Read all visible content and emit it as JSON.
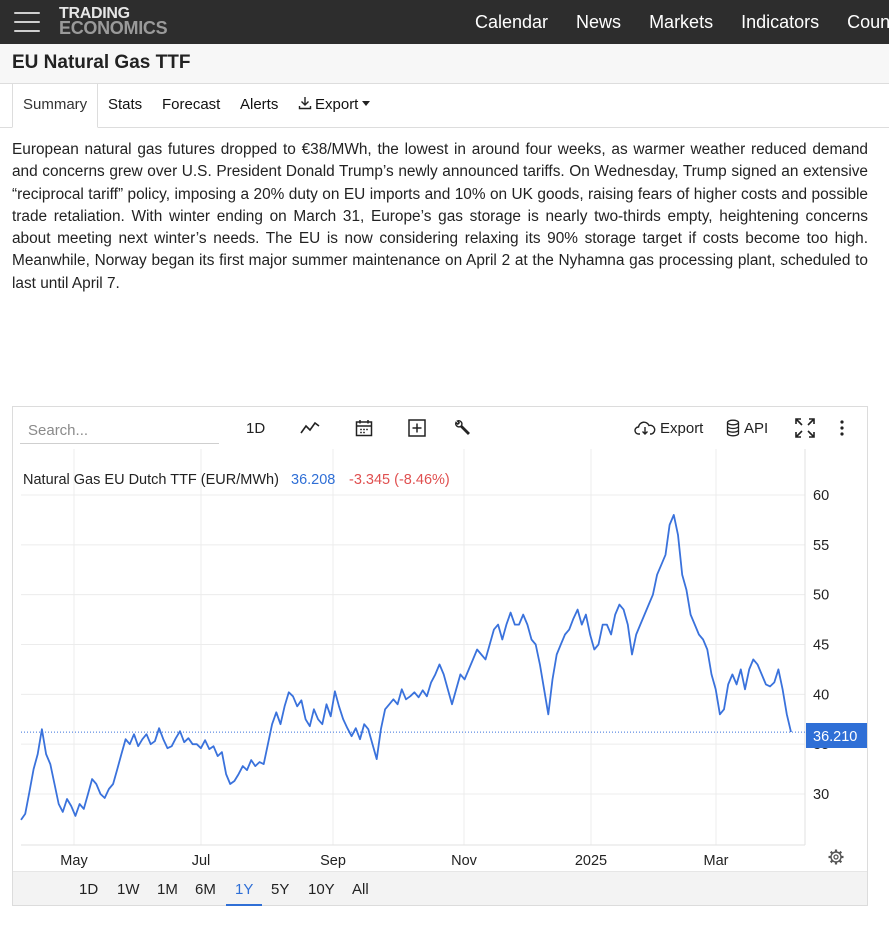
{
  "brand": {
    "line1": "TRADING",
    "line2": "ECONOMICS"
  },
  "nav": [
    "Calendar",
    "News",
    "Markets",
    "Indicators",
    "Countries"
  ],
  "page_title": "EU Natural Gas TTF",
  "tabs": {
    "summary": "Summary",
    "stats": "Stats",
    "forecast": "Forecast",
    "alerts": "Alerts",
    "export": "Export"
  },
  "description": "European natural gas futures dropped to €38/MWh, the lowest in around four weeks, as warmer weather reduced demand and concerns grew over U.S. President Donald Trump’s newly announced tariffs. On Wednesday, Trump signed an extensive “reciprocal tariff” policy, imposing a 20% duty on EU imports and 10% on UK goods, raising fears of higher costs and possible trade retaliation. With winter ending on March 31, Europe’s gas storage is nearly two-thirds empty, heightening concerns about meeting next winter’s needs. The EU is now considering relaxing its 90% storage target if costs become too high. Meanwhile, Norway began its first major summer maintenance on April 2 at the Nyhamna gas processing plant, scheduled to last until April 7.",
  "toolbar": {
    "search_placeholder": "Search...",
    "interval": "1D",
    "export": "Export",
    "api": "API"
  },
  "legend": {
    "name": "Natural Gas EU Dutch TTF (EUR/MWh)",
    "last": "36.208",
    "change": "-3.345 (-8.46%)"
  },
  "last_price_label": "36.210",
  "ranges": [
    "1D",
    "1W",
    "1M",
    "6M",
    "1Y",
    "5Y",
    "10Y",
    "All"
  ],
  "active_range": "1Y",
  "colors": {
    "line": "#3a72dc",
    "negative": "#e05050",
    "positive_text": "#2f6fd6",
    "navbar": "#2d2d2d"
  },
  "chart_data": {
    "type": "line",
    "title": "",
    "series": [
      {
        "name": "Natural Gas EU Dutch TTF (EUR/MWh)",
        "values": [
          27.4,
          28.0,
          30.2,
          32.5,
          34.0,
          36.5,
          34.0,
          33.0,
          31.0,
          29.0,
          28.2,
          29.5,
          28.8,
          27.8,
          29.0,
          28.5,
          30.0,
          31.5,
          31.0,
          30.0,
          29.6,
          30.5,
          31.0,
          32.5,
          34.0,
          35.5,
          35.0,
          36.0,
          34.8,
          35.5,
          36.0,
          35.0,
          35.3,
          36.6,
          35.5,
          34.6,
          34.8,
          35.6,
          36.3,
          35.2,
          35.6,
          35.0,
          35.0,
          34.6,
          35.4,
          34.5,
          34.8,
          33.8,
          34.2,
          32.0,
          31.0,
          31.3,
          32.0,
          32.8,
          32.4,
          33.4,
          32.8,
          33.2,
          33.0,
          35.0,
          37.0,
          38.2,
          37.0,
          38.8,
          40.2,
          39.8,
          38.8,
          39.4,
          37.5,
          36.8,
          38.5,
          37.5,
          37.0,
          39.0,
          37.8,
          40.3,
          38.8,
          37.5,
          36.6,
          35.8,
          36.6,
          35.5,
          37.0,
          36.5,
          35.0,
          33.5,
          36.5,
          38.5,
          39.0,
          39.5,
          39.0,
          40.5,
          39.5,
          39.8,
          40.2,
          39.7,
          40.4,
          39.8,
          41.2,
          42.0,
          43.0,
          42.0,
          40.5,
          39.0,
          40.5,
          42.0,
          41.5,
          42.5,
          43.5,
          44.5,
          44.0,
          43.5,
          45.0,
          46.5,
          47.0,
          45.5,
          47.0,
          48.2,
          47.0,
          47.0,
          48.0,
          47.0,
          45.5,
          45.0,
          43.0,
          40.5,
          38.0,
          41.5,
          44.0,
          45.0,
          46.0,
          46.5,
          47.6,
          48.5,
          47.0,
          48.0,
          46.0,
          44.5,
          45.0,
          47.0,
          47.0,
          46.0,
          48.0,
          49.0,
          48.5,
          47.0,
          44.0,
          46.0,
          47.0,
          48.0,
          49.0,
          50.0,
          52.0,
          53.0,
          54.0,
          57.0,
          58.0,
          56.0,
          52.0,
          50.5,
          48.0,
          47.0,
          46.0,
          45.5,
          44.5,
          42.0,
          40.5,
          38.0,
          38.5,
          41.0,
          42.0,
          41.0,
          42.5,
          40.5,
          42.5,
          43.5,
          43.0,
          42.0,
          41.0,
          40.8,
          41.2,
          42.5,
          40.5,
          38.0,
          36.208
        ]
      }
    ],
    "x_ticks": [
      "May",
      "Jul",
      "Sep",
      "Nov",
      "2025",
      "Mar"
    ],
    "y_ticks": [
      30,
      35,
      40,
      45,
      50,
      55,
      60
    ],
    "ylim": [
      25,
      60
    ],
    "grid": true,
    "last_value": 36.21
  }
}
